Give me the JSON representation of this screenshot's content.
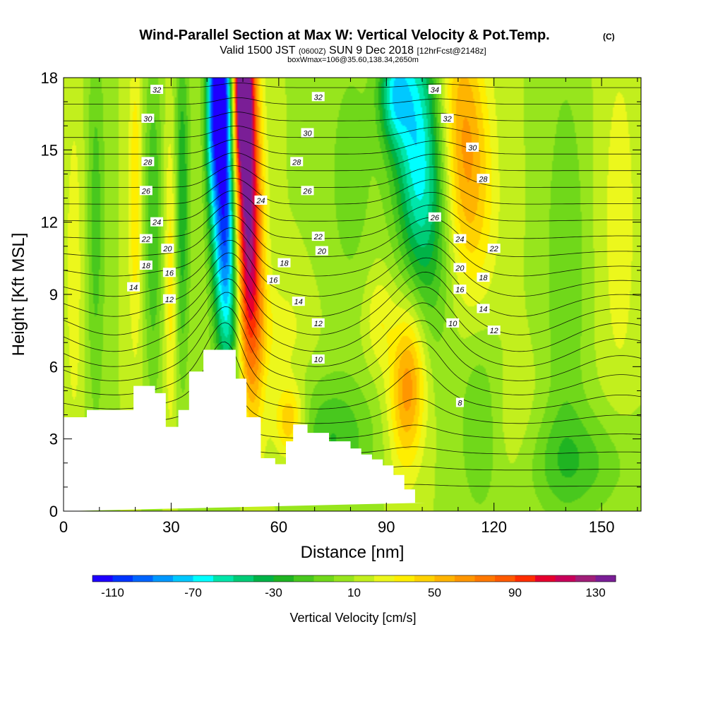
{
  "header": {
    "title": "Wind-Parallel Section at Max W: Vertical Velocity & Pot.Temp.",
    "title_mark": "(C)",
    "valid_label": "Valid 1500 JST",
    "valid_utc": "(0600Z)",
    "valid_date": "SUN 9 Dec 2018",
    "forecast": "[12hrFcst@2148z]",
    "box_info": "boxWmax=106@35.60,138.34,2650m"
  },
  "chart_data": {
    "type": "contour",
    "xlabel": "Distance [nm]",
    "ylabel": "Height [Kft MSL]",
    "xlim": [
      0,
      161
    ],
    "ylim": [
      0,
      18
    ],
    "xticks": [
      0,
      30,
      60,
      90,
      120,
      150
    ],
    "yticks": [
      0,
      3,
      6,
      9,
      12,
      15,
      18
    ],
    "colorbar": {
      "label": "Vertical Velocity [cm/s]",
      "tick_labels": [
        "-110",
        "-70",
        "-30",
        "10",
        "50",
        "90",
        "130"
      ],
      "tick_values": [
        -110,
        -70,
        -30,
        10,
        50,
        90,
        130
      ],
      "min": -120,
      "step": 10,
      "colors": [
        "#1e00ff",
        "#0035ff",
        "#0065ff",
        "#0098ff",
        "#00c8ff",
        "#00ffff",
        "#00e6aa",
        "#00cc77",
        "#00b347",
        "#1fb422",
        "#48c81e",
        "#70d81a",
        "#97e51d",
        "#c2ef1d",
        "#ecf71c",
        "#ffee00",
        "#ffd200",
        "#ffb400",
        "#ff9600",
        "#ff7800",
        "#ff5a00",
        "#ff2d00",
        "#e6002e",
        "#c8005a",
        "#a01e78",
        "#7a1e96"
      ]
    },
    "terrain": {
      "x": [
        0,
        6.5,
        6.5,
        19.5,
        19.5,
        25.5,
        25.5,
        28.5,
        28.5,
        32,
        32,
        35,
        35,
        39,
        39,
        48,
        48,
        51,
        51,
        55,
        55,
        59,
        59,
        62,
        62,
        64,
        64,
        68,
        68,
        74,
        74,
        80,
        80,
        83,
        83,
        86,
        86,
        89,
        89,
        92,
        92,
        95,
        95,
        98,
        98,
        101,
        101,
        161
      ],
      "y": [
        3.9,
        3.9,
        4.2,
        4.2,
        5.2,
        5.2,
        4.9,
        4.9,
        3.5,
        3.5,
        4.2,
        4.2,
        5.8,
        5.8,
        6.7,
        6.7,
        5.5,
        5.5,
        3.9,
        3.9,
        2.2,
        2.2,
        1.95,
        1.95,
        2.9,
        2.9,
        3.6,
        3.6,
        3.25,
        3.25,
        2.9,
        2.9,
        2.6,
        2.6,
        2.35,
        2.35,
        2.15,
        2.15,
        1.9,
        1.9,
        1.5,
        1.5,
        0.9,
        0.9,
        0.35,
        0.35
      ]
    },
    "w_field": {
      "background": 10,
      "features": [
        {
          "x": 45,
          "y": 13,
          "sx": 2.6,
          "sy": 5,
          "tilt": -0.14,
          "amp": -130
        },
        {
          "x": 41.5,
          "y": 17,
          "sx": 1.4,
          "sy": 3,
          "tilt": 0,
          "amp": -50
        },
        {
          "x": 51,
          "y": 13,
          "sx": 2.8,
          "sy": 5.5,
          "tilt": -0.16,
          "amp": 135
        },
        {
          "x": 44.5,
          "y": 17.5,
          "sx": 2,
          "sy": 2,
          "tilt": 0,
          "amp": -60
        },
        {
          "x": 50,
          "y": 17.5,
          "sx": 1.8,
          "sy": 2,
          "tilt": 0,
          "amp": 100
        },
        {
          "x": 99,
          "y": 15,
          "sx": 5,
          "sy": 4.5,
          "tilt": -0.3,
          "amp": -80
        },
        {
          "x": 92,
          "y": 17.3,
          "sx": 3,
          "sy": 1.5,
          "tilt": 0,
          "amp": -50
        },
        {
          "x": 112,
          "y": 15,
          "sx": 5,
          "sy": 4.2,
          "tilt": -0.3,
          "amp": 55
        },
        {
          "x": 96,
          "y": 5.2,
          "sx": 3.5,
          "sy": 2.4,
          "tilt": 0.15,
          "amp": 58
        },
        {
          "x": 88,
          "y": 8,
          "sx": 3,
          "sy": 1.5,
          "tilt": 0,
          "amp": 20
        },
        {
          "x": 63,
          "y": 3.7,
          "sx": 3,
          "sy": 1.1,
          "tilt": 0,
          "amp": 45
        },
        {
          "x": 20,
          "y": 13,
          "sx": 1.3,
          "sy": 4.5,
          "tilt": 0,
          "amp": 30
        },
        {
          "x": 30,
          "y": 10,
          "sx": 1.3,
          "sy": 4.5,
          "tilt": 0,
          "amp": 28
        },
        {
          "x": 33,
          "y": 13,
          "sx": 1.5,
          "sy": 5,
          "tilt": 0,
          "amp": -40
        },
        {
          "x": 25,
          "y": 12,
          "sx": 1.7,
          "sy": 5,
          "tilt": 0,
          "amp": -30
        },
        {
          "x": 9,
          "y": 12,
          "sx": 1.8,
          "sy": 6,
          "tilt": 0,
          "amp": -25
        },
        {
          "x": 3,
          "y": 10,
          "sx": 2,
          "sy": 6,
          "tilt": 0,
          "amp": 15
        },
        {
          "x": 75,
          "y": 3,
          "sx": 8,
          "sy": 1.8,
          "tilt": 0,
          "amp": -30
        },
        {
          "x": 116,
          "y": 4,
          "sx": 4,
          "sy": 3,
          "tilt": 0,
          "amp": -20
        },
        {
          "x": 126,
          "y": 3,
          "sx": 5,
          "sy": 2,
          "tilt": 0,
          "amp": 12
        },
        {
          "x": 142,
          "y": 2,
          "sx": 12,
          "sy": 1.6,
          "tilt": 0,
          "amp": -25
        },
        {
          "x": 140,
          "y": 10,
          "sx": 4,
          "sy": 6,
          "tilt": 0,
          "amp": -20
        },
        {
          "x": 155,
          "y": 12,
          "sx": 4,
          "sy": 6,
          "tilt": 0,
          "amp": 15
        },
        {
          "x": 80,
          "y": 14,
          "sx": 5,
          "sy": 4,
          "tilt": 0,
          "amp": -15
        },
        {
          "x": 60,
          "y": 7.5,
          "sx": 6,
          "sy": 1.5,
          "tilt": 0,
          "amp": 15
        }
      ]
    },
    "theta_labels": [
      {
        "text": "32",
        "x": 26,
        "y": 17.5
      },
      {
        "text": "30",
        "x": 23.5,
        "y": 16.3
      },
      {
        "text": "28",
        "x": 23.5,
        "y": 14.5
      },
      {
        "text": "26",
        "x": 23,
        "y": 13.3
      },
      {
        "text": "24",
        "x": 26,
        "y": 12
      },
      {
        "text": "22",
        "x": 23,
        "y": 11.3
      },
      {
        "text": "20",
        "x": 29,
        "y": 10.9
      },
      {
        "text": "18",
        "x": 23,
        "y": 10.2
      },
      {
        "text": "16",
        "x": 29.5,
        "y": 9.9
      },
      {
        "text": "14",
        "x": 19.5,
        "y": 9.3
      },
      {
        "text": "12",
        "x": 29.5,
        "y": 8.8
      },
      {
        "text": "32",
        "x": 71,
        "y": 17.2
      },
      {
        "text": "30",
        "x": 68,
        "y": 15.7
      },
      {
        "text": "28",
        "x": 65,
        "y": 14.5
      },
      {
        "text": "26",
        "x": 68,
        "y": 13.3
      },
      {
        "text": "24",
        "x": 55,
        "y": 12.9
      },
      {
        "text": "22",
        "x": 71,
        "y": 11.4
      },
      {
        "text": "20",
        "x": 72,
        "y": 10.8
      },
      {
        "text": "18",
        "x": 61.5,
        "y": 10.3
      },
      {
        "text": "16",
        "x": 58.5,
        "y": 9.6
      },
      {
        "text": "14",
        "x": 65.5,
        "y": 8.7
      },
      {
        "text": "12",
        "x": 71,
        "y": 7.8
      },
      {
        "text": "10",
        "x": 71,
        "y": 6.3
      },
      {
        "text": "34",
        "x": 103.5,
        "y": 17.5
      },
      {
        "text": "32",
        "x": 107,
        "y": 16.3
      },
      {
        "text": "30",
        "x": 114,
        "y": 15.1
      },
      {
        "text": "28",
        "x": 117,
        "y": 13.8
      },
      {
        "text": "26",
        "x": 103.5,
        "y": 12.2
      },
      {
        "text": "24",
        "x": 110.5,
        "y": 11.3
      },
      {
        "text": "22",
        "x": 120,
        "y": 10.9
      },
      {
        "text": "20",
        "x": 110.5,
        "y": 10.1
      },
      {
        "text": "18",
        "x": 117,
        "y": 9.7
      },
      {
        "text": "16",
        "x": 110.5,
        "y": 9.2
      },
      {
        "text": "14",
        "x": 117,
        "y": 8.4
      },
      {
        "text": "12",
        "x": 120,
        "y": 7.5
      },
      {
        "text": "10",
        "x": 108.5,
        "y": 7.8
      },
      {
        "text": "8",
        "x": 110.5,
        "y": 4.5
      }
    ]
  }
}
